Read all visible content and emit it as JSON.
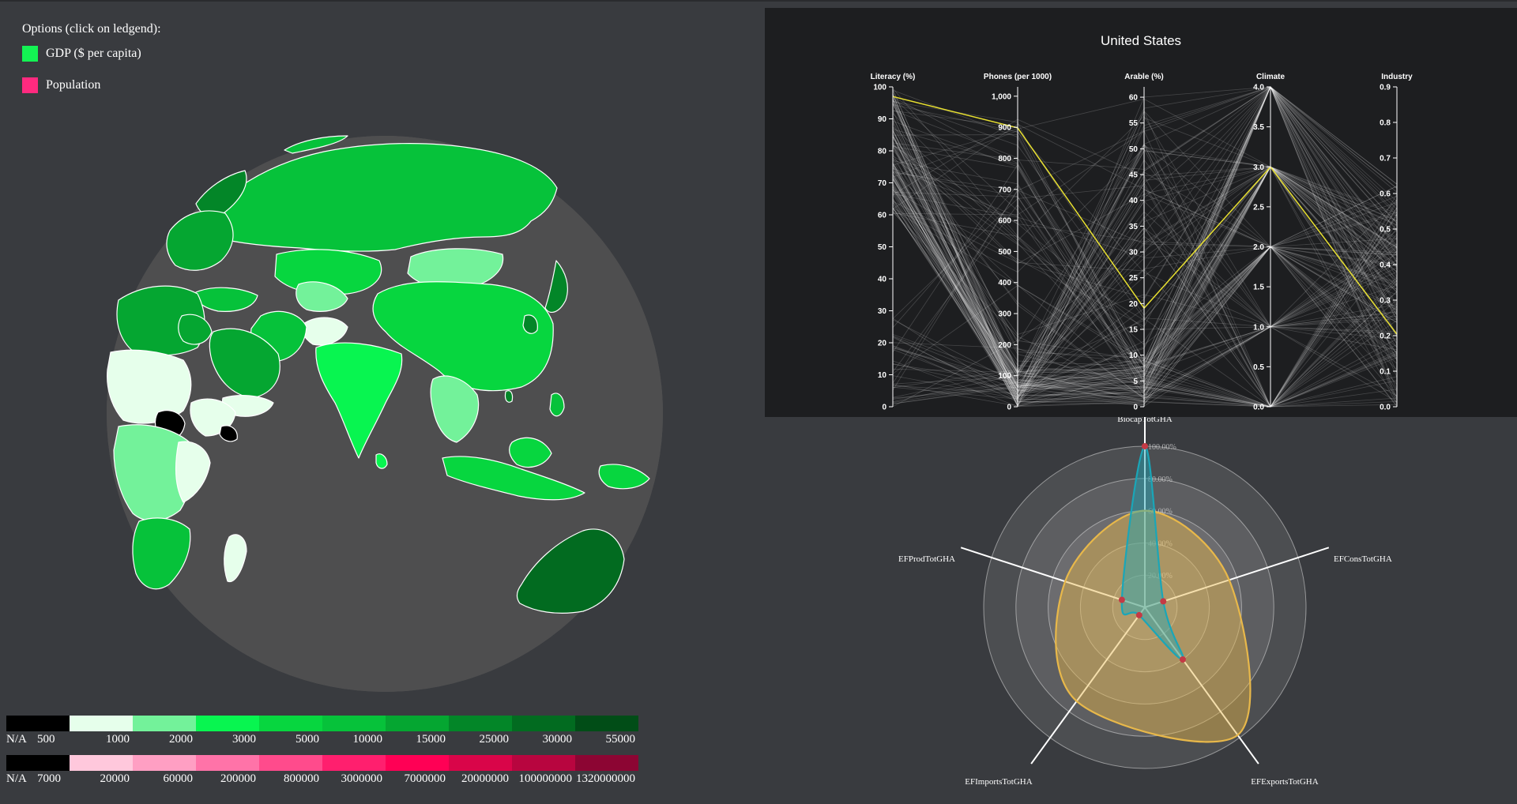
{
  "left": {
    "options_title": "Options (click on ledgend):",
    "legend_options": [
      {
        "label": "GDP ($ per capita)",
        "color": "#13f353"
      },
      {
        "label": "Population",
        "color": "#ff2a7f"
      }
    ]
  },
  "globe": {
    "ocean_color": "#4e4e4f",
    "halo_color": "#525355",
    "land_colors": [
      "#000000",
      "#e6ffeb",
      "#73f29a",
      "#08f550",
      "#07d63f",
      "#06c23a",
      "#05a631",
      "#038628",
      "#026b20",
      "#014d17"
    ]
  },
  "gdp_scale": {
    "na_label": "N/A",
    "first_label": "500",
    "labels": [
      "1000",
      "2000",
      "3000",
      "5000",
      "10000",
      "15000",
      "25000",
      "30000",
      "55000"
    ],
    "colors": [
      "#000000",
      "#e6ffeb",
      "#73f29a",
      "#08f550",
      "#07d63f",
      "#06c23a",
      "#05a631",
      "#038628",
      "#026b20",
      "#014d17"
    ]
  },
  "pop_scale": {
    "na_label": "N/A",
    "first_label": "7000",
    "labels": [
      "20000",
      "60000",
      "200000",
      "800000",
      "3000000",
      "7000000",
      "20000000",
      "100000000",
      "1320000000"
    ],
    "colors": [
      "#000000",
      "#ffc8dc",
      "#ff9fc3",
      "#ff73a8",
      "#ff4b8c",
      "#ff1f6e",
      "#ff0055",
      "#d90549",
      "#b8053f",
      "#8c0533"
    ]
  },
  "parallel": {
    "title": "United States",
    "highlight_color": "#e8e030",
    "axes": [
      {
        "name": "Literacy (%)",
        "min": 0,
        "max": 100,
        "ticks": [
          "0",
          "10",
          "20",
          "30",
          "40",
          "50",
          "60",
          "70",
          "80",
          "90",
          "100"
        ]
      },
      {
        "name": "Phones (per 1000)",
        "min": 0,
        "max": 1030,
        "ticks": [
          "0",
          "100",
          "200",
          "300",
          "400",
          "500",
          "600",
          "700",
          "800",
          "900",
          "1,000"
        ]
      },
      {
        "name": "Arable (%)",
        "min": 0,
        "max": 62,
        "ticks": [
          "0",
          "5",
          "10",
          "15",
          "20",
          "25",
          "30",
          "35",
          "40",
          "45",
          "50",
          "55",
          "60"
        ]
      },
      {
        "name": "Climate",
        "min": 0,
        "max": 4,
        "ticks": [
          "0.0",
          "0.5",
          "1.0",
          "1.5",
          "2.0",
          "2.5",
          "3.0",
          "3.5",
          "4.0"
        ]
      },
      {
        "name": "Industry",
        "min": 0,
        "max": 0.9,
        "ticks": [
          "0.0",
          "0.1",
          "0.2",
          "0.3",
          "0.4",
          "0.5",
          "0.6",
          "0.7",
          "0.8",
          "0.9"
        ]
      }
    ],
    "highlight_values": [
      97,
      898,
      19.1,
      3.0,
      0.204
    ]
  },
  "chart_data": {
    "type": "radar",
    "axes": [
      "BiocapTotGHA",
      "EFConsTotGHA",
      "EFExportsTotGHA",
      "EFImportsTotGHA",
      "EFProdTotGHA"
    ],
    "ring_labels": [
      "20.00%",
      "40.00%",
      "60.00%",
      "80.00%",
      "100.00%"
    ],
    "max": 1.0,
    "series": [
      {
        "color": "#e8b84a",
        "values": [
          0.6,
          0.55,
          0.98,
          0.72,
          0.52
        ]
      },
      {
        "color": "#1aa6b8",
        "values": [
          1.0,
          0.12,
          0.4,
          0.06,
          0.15
        ]
      }
    ]
  }
}
